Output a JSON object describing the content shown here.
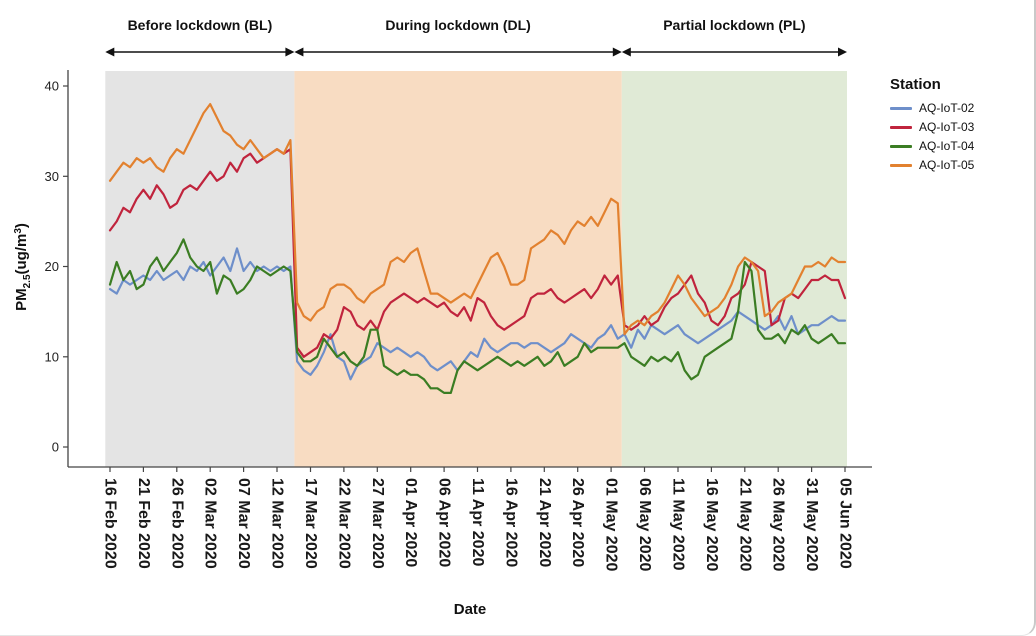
{
  "chart_data": {
    "type": "line",
    "title": "",
    "xlabel": "Date",
    "ylabel": "PM2.5(ug/m3)",
    "ylabel_parts": {
      "main": "PM",
      "sub": "2.5",
      "mid": "(ug/m",
      "sup": "3",
      "end": ")"
    },
    "ylim": [
      0,
      42
    ],
    "yticks": [
      0,
      10,
      20,
      30,
      40
    ],
    "grid": false,
    "legend_title": "Station",
    "legend_position": "right",
    "x_unit": "day",
    "x_start_date": "16 Feb 2020",
    "x_end_date": "05 Jun 2020",
    "x_tick_days": [
      0,
      5,
      10,
      15,
      20,
      25,
      30,
      35,
      40,
      45,
      50,
      55,
      60,
      65,
      70,
      75,
      80,
      85,
      90,
      95,
      100,
      105,
      110
    ],
    "x_tick_labels": [
      "16 Feb 2020",
      "21 Feb 2020",
      "26 Feb 2020",
      "02 Mar 2020",
      "07 Mar 2020",
      "12 Mar 2020",
      "17 Mar 2020",
      "22 Mar 2020",
      "27 Mar 2020",
      "01 Apr 2020",
      "06 Apr 2020",
      "11 Apr 2020",
      "16 Apr 2020",
      "21 Apr 2020",
      "26 Apr 2020",
      "01 May 2020",
      "06 May 2020",
      "11 May 2020",
      "16 May 2020",
      "21 May 2020",
      "26 May 2020",
      "31 May 2020",
      "05 Jun 2020"
    ],
    "regions": [
      {
        "label": "Before lockdown (BL)",
        "start_day": -0.7,
        "end_day": 27.6,
        "color": "#e4e4e4"
      },
      {
        "label": "During lockdown (DL)",
        "start_day": 27.6,
        "end_day": 76.6,
        "color": "#f8dcc2"
      },
      {
        "label": "Partial lockdown (PL)",
        "start_day": 76.6,
        "end_day": 110.3,
        "color": "#e0ead6"
      }
    ],
    "series": [
      {
        "name": "AQ-IoT-02",
        "color": "#6e8fca",
        "values": [
          17.5,
          17,
          18.5,
          18,
          18.5,
          19,
          18.5,
          19.5,
          18.5,
          19,
          19.5,
          18.5,
          20,
          19.5,
          20.5,
          19,
          20,
          21,
          19.5,
          22,
          19.5,
          20.5,
          19.5,
          20,
          19.5,
          20,
          19.5,
          20,
          9.5,
          8.5,
          8,
          9,
          10.5,
          12.5,
          10,
          9.5,
          7.5,
          9,
          9.5,
          10,
          11.5,
          11,
          10.5,
          11,
          10.5,
          10,
          10.5,
          10,
          9,
          8.5,
          9,
          9.5,
          8.5,
          9.5,
          10.5,
          10,
          12,
          11,
          10.5,
          11,
          11.5,
          11.5,
          11,
          11.5,
          11.5,
          11,
          10.5,
          11,
          11.5,
          12.5,
          12,
          11.5,
          11,
          12,
          12.5,
          13.5,
          12,
          12.5,
          11,
          13,
          12,
          13.5,
          13,
          12.5,
          13,
          13.5,
          12.5,
          12,
          11.5,
          12,
          12.5,
          13,
          13.5,
          14,
          15,
          14.5,
          14,
          13.5,
          13,
          13.5,
          14.5,
          13,
          14.5,
          12.5,
          13,
          13.5,
          13.5,
          14,
          14.5,
          14,
          14
        ]
      },
      {
        "name": "AQ-IoT-03",
        "color": "#c0243d",
        "values": [
          24,
          25,
          26.5,
          26,
          27.5,
          28.5,
          27.5,
          29,
          28,
          26.5,
          27,
          28.5,
          29,
          28.5,
          29.5,
          30.5,
          29.5,
          30,
          31.5,
          30.5,
          32,
          32.5,
          31.5,
          32,
          32.5,
          33,
          32.5,
          33,
          11,
          10,
          10.5,
          11,
          12.5,
          12,
          13,
          15.5,
          15,
          13.5,
          13,
          14,
          13,
          15,
          16,
          16.5,
          17,
          16.5,
          16,
          16.5,
          16,
          15.5,
          16,
          15,
          14.5,
          15.5,
          14,
          16.5,
          16,
          14.5,
          13.5,
          13,
          13.5,
          14,
          14.5,
          16.5,
          17,
          17,
          17.5,
          16.5,
          16,
          16.5,
          17,
          17.5,
          16.5,
          17.5,
          19,
          18,
          19,
          13.5,
          13,
          13.5,
          14.5,
          13.5,
          14,
          15.5,
          16.5,
          17,
          18,
          19,
          17,
          16,
          14,
          13.5,
          14.5,
          16.5,
          17,
          18,
          20.5,
          20,
          19.5,
          13.5,
          14,
          16.5,
          17,
          16.5,
          17.5,
          18.5,
          18.5,
          19,
          18.5,
          18.5,
          16.5
        ]
      },
      {
        "name": "AQ-IoT-04",
        "color": "#3b7d23",
        "values": [
          18,
          20.5,
          18.5,
          19.5,
          17.5,
          18,
          20,
          21,
          19.5,
          20.5,
          21.5,
          23,
          21,
          20,
          19.5,
          20.5,
          17,
          19,
          18.5,
          17,
          17.5,
          18.5,
          20,
          19.5,
          19,
          19.5,
          20,
          19.5,
          10.5,
          9.5,
          9.5,
          10,
          12,
          11,
          10,
          10.5,
          9.5,
          9,
          10,
          13,
          13,
          9,
          8.5,
          8,
          8.5,
          8,
          8,
          7.5,
          6.5,
          6.5,
          6,
          6,
          8.5,
          9.5,
          9,
          8.5,
          9,
          9.5,
          10,
          9.5,
          9,
          9.5,
          9,
          9.5,
          10,
          9,
          9.5,
          10.5,
          9,
          9.5,
          10,
          11.5,
          10.5,
          11,
          11,
          11,
          11,
          11.5,
          10,
          9.5,
          9,
          10,
          9.5,
          10,
          9.5,
          10.5,
          8.5,
          7.5,
          8,
          10,
          10.5,
          11,
          11.5,
          12,
          15,
          20.5,
          19.5,
          13,
          12,
          12,
          12.5,
          11.5,
          13,
          12.5,
          13.5,
          12,
          11.5,
          12,
          12.5,
          11.5,
          11.5
        ]
      },
      {
        "name": "AQ-IoT-05",
        "color": "#e2812f",
        "values": [
          29.5,
          30.5,
          31.5,
          31,
          32,
          31.5,
          32,
          31,
          30.5,
          32,
          33,
          32.5,
          34,
          35.5,
          37,
          38,
          36.5,
          35,
          34.5,
          33.5,
          33,
          34,
          33,
          32,
          32.5,
          33,
          32.5,
          34,
          16,
          14.5,
          14,
          15,
          15.5,
          17.5,
          18,
          18,
          17.5,
          16.5,
          16,
          17,
          17.5,
          18,
          20.5,
          21,
          20.5,
          21.5,
          22,
          19.5,
          17,
          17,
          16.5,
          16,
          16.5,
          17,
          16.5,
          18,
          19.5,
          21,
          21.5,
          20,
          18,
          18,
          18.5,
          22,
          22.5,
          23,
          24,
          23.5,
          22.5,
          24,
          25,
          24.5,
          25.5,
          24.5,
          26,
          27.5,
          27,
          12.5,
          13.5,
          14,
          13.5,
          14.5,
          15,
          16,
          17.5,
          19,
          18,
          16.5,
          15.5,
          14.5,
          15,
          15.5,
          16.5,
          18,
          20,
          21,
          20.5,
          19.5,
          14.5,
          15,
          16,
          16.5,
          17,
          18.5,
          20,
          20,
          20.5,
          20,
          21,
          20.5,
          20.5
        ]
      }
    ]
  }
}
